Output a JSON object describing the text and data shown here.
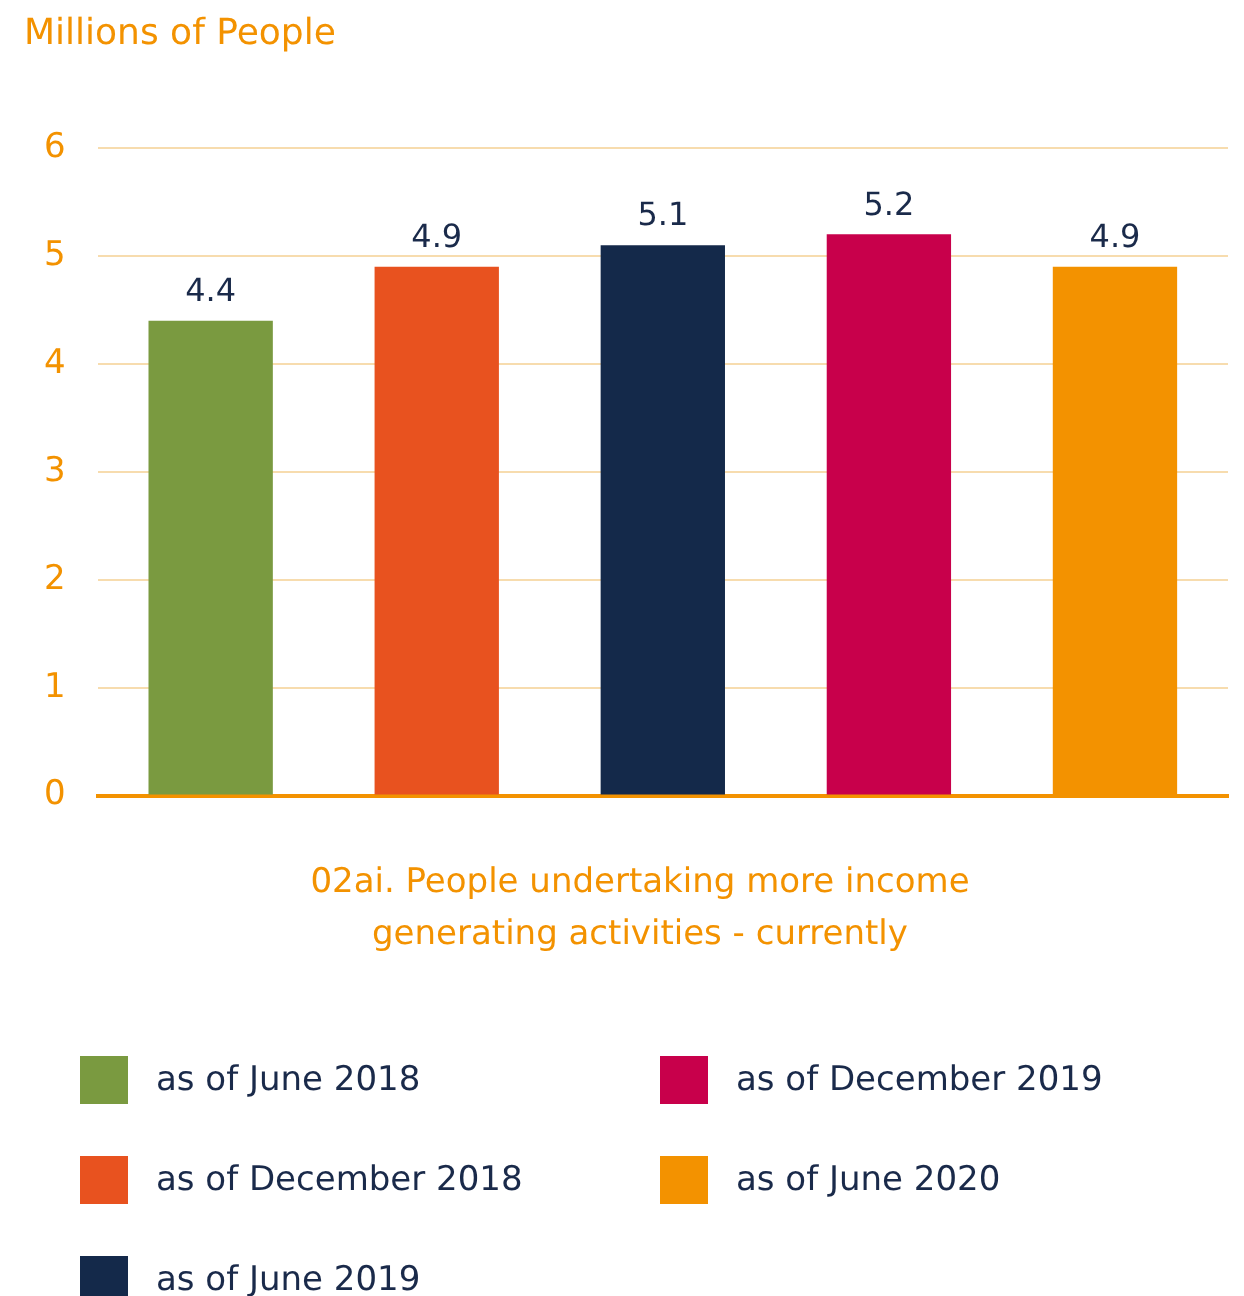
{
  "chart_data": {
    "type": "bar",
    "ylabel": "Millions of People",
    "xlabel": "02ai. People undertaking more income generating activities - currently",
    "categories": [
      null,
      null,
      null,
      null,
      null
    ],
    "series": [
      {
        "name": "as of June 2018",
        "color": "#7a9a40",
        "values": [
          4.4,
          null,
          null,
          null,
          null
        ]
      },
      {
        "name": "as of December 2018",
        "color": "#e8521f",
        "values": [
          null,
          4.9,
          null,
          null,
          null
        ]
      },
      {
        "name": "as of June 2019",
        "color": "#14294a",
        "values": [
          null,
          null,
          5.1,
          null,
          null
        ]
      },
      {
        "name": "as of December 2019",
        "color": "#c8004b",
        "values": [
          null,
          null,
          null,
          5.2,
          null
        ]
      },
      {
        "name": "as of June 2020",
        "color": "#f39200",
        "values": [
          null,
          null,
          null,
          null,
          4.9
        ]
      }
    ],
    "ylim": [
      0,
      6
    ],
    "yticks": [
      0,
      1,
      2,
      3,
      4,
      5,
      6
    ],
    "grid": "y",
    "data_labels": true,
    "legend": "bottom"
  }
}
